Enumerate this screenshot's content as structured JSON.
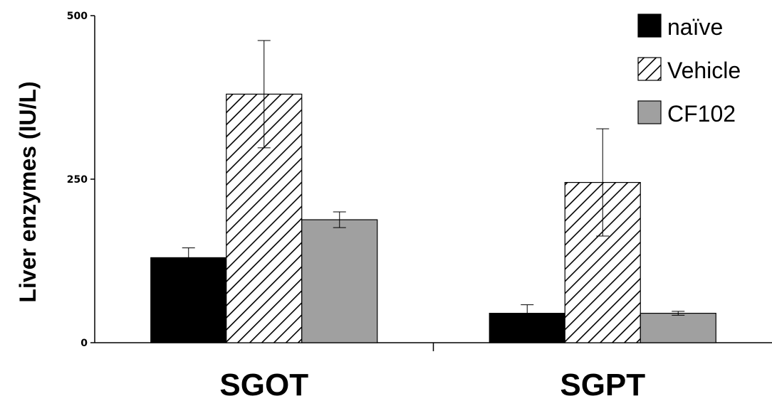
{
  "chart_data": {
    "type": "bar",
    "title": "",
    "xlabel": "",
    "ylabel": "Liver enzymes (IU/L)",
    "categories": [
      "SGOT",
      "SGPT"
    ],
    "ylim": [
      0,
      500
    ],
    "yticks": [
      "0",
      "250",
      "500"
    ],
    "grid": false,
    "legend_position": "top-right",
    "series": [
      {
        "name": "naïve",
        "values": [
          130,
          45
        ],
        "errors": [
          15,
          13
        ],
        "fill": "#000000",
        "pattern": "solid"
      },
      {
        "name": "Vehicle",
        "values": [
          380,
          245
        ],
        "errors": [
          82,
          82
        ],
        "fill": "#ffffff",
        "pattern": "hatch"
      },
      {
        "name": "CF102",
        "values": [
          188,
          45
        ],
        "errors": [
          12,
          3
        ],
        "fill": "#a0a0a0",
        "pattern": "solid"
      }
    ]
  }
}
